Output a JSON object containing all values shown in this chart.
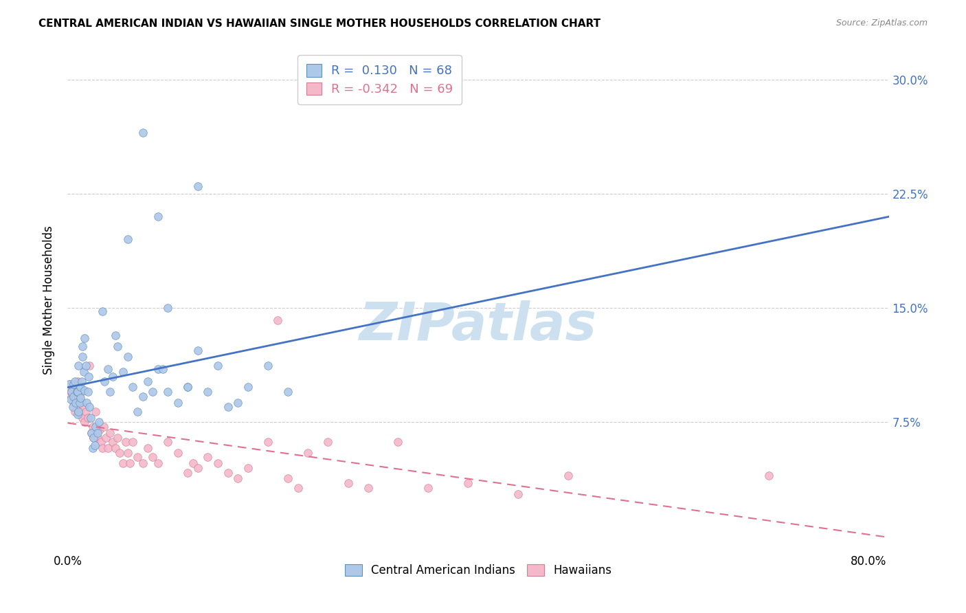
{
  "title": "CENTRAL AMERICAN INDIAN VS HAWAIIAN SINGLE MOTHER HOUSEHOLDS CORRELATION CHART",
  "source": "Source: ZipAtlas.com",
  "ylabel": "Single Mother Households",
  "yticks": [
    0.0,
    0.075,
    0.15,
    0.225,
    0.3
  ],
  "xticks": [
    0.0,
    0.2,
    0.4,
    0.6,
    0.8
  ],
  "xlim": [
    0.0,
    0.82
  ],
  "ylim": [
    -0.01,
    0.32
  ],
  "blue_R": 0.13,
  "blue_N": 68,
  "pink_R": -0.342,
  "pink_N": 69,
  "blue_color": "#adc8e8",
  "pink_color": "#f5b8cb",
  "blue_line_color": "#4472c4",
  "pink_line_color": "#e07090",
  "blue_scatter": [
    [
      0.002,
      0.1
    ],
    [
      0.003,
      0.09
    ],
    [
      0.004,
      0.095
    ],
    [
      0.005,
      0.085
    ],
    [
      0.006,
      0.092
    ],
    [
      0.006,
      0.1
    ],
    [
      0.007,
      0.102
    ],
    [
      0.008,
      0.088
    ],
    [
      0.009,
      0.095
    ],
    [
      0.01,
      0.08
    ],
    [
      0.01,
      0.095
    ],
    [
      0.011,
      0.082
    ],
    [
      0.011,
      0.112
    ],
    [
      0.012,
      0.088
    ],
    [
      0.013,
      0.098
    ],
    [
      0.013,
      0.091
    ],
    [
      0.014,
      0.102
    ],
    [
      0.015,
      0.125
    ],
    [
      0.015,
      0.118
    ],
    [
      0.016,
      0.108
    ],
    [
      0.017,
      0.096
    ],
    [
      0.017,
      0.13
    ],
    [
      0.018,
      0.112
    ],
    [
      0.019,
      0.088
    ],
    [
      0.02,
      0.095
    ],
    [
      0.021,
      0.105
    ],
    [
      0.022,
      0.085
    ],
    [
      0.023,
      0.078
    ],
    [
      0.024,
      0.068
    ],
    [
      0.025,
      0.058
    ],
    [
      0.026,
      0.065
    ],
    [
      0.027,
      0.06
    ],
    [
      0.028,
      0.072
    ],
    [
      0.03,
      0.068
    ],
    [
      0.031,
      0.075
    ],
    [
      0.035,
      0.148
    ],
    [
      0.037,
      0.102
    ],
    [
      0.04,
      0.11
    ],
    [
      0.042,
      0.095
    ],
    [
      0.045,
      0.105
    ],
    [
      0.048,
      0.132
    ],
    [
      0.05,
      0.125
    ],
    [
      0.055,
      0.108
    ],
    [
      0.06,
      0.118
    ],
    [
      0.065,
      0.098
    ],
    [
      0.07,
      0.082
    ],
    [
      0.075,
      0.092
    ],
    [
      0.08,
      0.102
    ],
    [
      0.085,
      0.095
    ],
    [
      0.09,
      0.11
    ],
    [
      0.095,
      0.11
    ],
    [
      0.1,
      0.095
    ],
    [
      0.11,
      0.088
    ],
    [
      0.12,
      0.098
    ],
    [
      0.13,
      0.122
    ],
    [
      0.14,
      0.095
    ],
    [
      0.15,
      0.112
    ],
    [
      0.16,
      0.085
    ],
    [
      0.17,
      0.088
    ],
    [
      0.18,
      0.098
    ],
    [
      0.2,
      0.112
    ],
    [
      0.22,
      0.095
    ],
    [
      0.13,
      0.23
    ],
    [
      0.075,
      0.265
    ],
    [
      0.09,
      0.21
    ],
    [
      0.06,
      0.195
    ],
    [
      0.1,
      0.15
    ],
    [
      0.12,
      0.098
    ]
  ],
  "pink_scatter": [
    [
      0.002,
      0.1
    ],
    [
      0.003,
      0.095
    ],
    [
      0.004,
      0.092
    ],
    [
      0.005,
      0.098
    ],
    [
      0.006,
      0.088
    ],
    [
      0.007,
      0.082
    ],
    [
      0.008,
      0.095
    ],
    [
      0.009,
      0.09
    ],
    [
      0.01,
      0.102
    ],
    [
      0.011,
      0.086
    ],
    [
      0.012,
      0.092
    ],
    [
      0.013,
      0.08
    ],
    [
      0.014,
      0.088
    ],
    [
      0.015,
      0.078
    ],
    [
      0.016,
      0.085
    ],
    [
      0.017,
      0.075
    ],
    [
      0.018,
      0.082
    ],
    [
      0.02,
      0.078
    ],
    [
      0.022,
      0.112
    ],
    [
      0.024,
      0.068
    ],
    [
      0.025,
      0.072
    ],
    [
      0.026,
      0.065
    ],
    [
      0.028,
      0.082
    ],
    [
      0.03,
      0.065
    ],
    [
      0.032,
      0.07
    ],
    [
      0.033,
      0.062
    ],
    [
      0.035,
      0.058
    ],
    [
      0.036,
      0.072
    ],
    [
      0.038,
      0.065
    ],
    [
      0.04,
      0.058
    ],
    [
      0.042,
      0.068
    ],
    [
      0.045,
      0.062
    ],
    [
      0.048,
      0.058
    ],
    [
      0.05,
      0.065
    ],
    [
      0.052,
      0.055
    ],
    [
      0.055,
      0.048
    ],
    [
      0.058,
      0.062
    ],
    [
      0.06,
      0.055
    ],
    [
      0.062,
      0.048
    ],
    [
      0.065,
      0.062
    ],
    [
      0.07,
      0.052
    ],
    [
      0.075,
      0.048
    ],
    [
      0.08,
      0.058
    ],
    [
      0.085,
      0.052
    ],
    [
      0.09,
      0.048
    ],
    [
      0.1,
      0.062
    ],
    [
      0.11,
      0.055
    ],
    [
      0.12,
      0.042
    ],
    [
      0.125,
      0.048
    ],
    [
      0.13,
      0.045
    ],
    [
      0.14,
      0.052
    ],
    [
      0.15,
      0.048
    ],
    [
      0.16,
      0.042
    ],
    [
      0.17,
      0.038
    ],
    [
      0.18,
      0.045
    ],
    [
      0.2,
      0.062
    ],
    [
      0.21,
      0.142
    ],
    [
      0.22,
      0.038
    ],
    [
      0.23,
      0.032
    ],
    [
      0.24,
      0.055
    ],
    [
      0.26,
      0.062
    ],
    [
      0.28,
      0.035
    ],
    [
      0.3,
      0.032
    ],
    [
      0.33,
      0.062
    ],
    [
      0.36,
      0.032
    ],
    [
      0.4,
      0.035
    ],
    [
      0.45,
      0.028
    ],
    [
      0.5,
      0.04
    ],
    [
      0.7,
      0.04
    ]
  ],
  "watermark": "ZIPatlas",
  "watermark_color": "#cce0f0",
  "background_color": "#ffffff",
  "grid_color": "#cccccc"
}
